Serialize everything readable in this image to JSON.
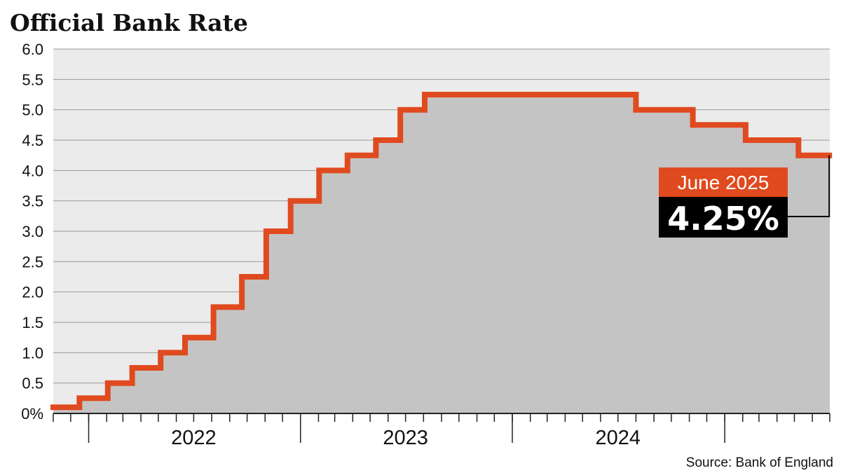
{
  "chart_data": {
    "type": "area",
    "title": "Official Bank Rate",
    "source": "Source: Bank of England",
    "ylim": [
      0,
      6.0
    ],
    "yticks": [
      "0%",
      "0.5",
      "1.0",
      "1.5",
      "2.0",
      "2.5",
      "3.0",
      "3.5",
      "4.0",
      "4.5",
      "5.0",
      "5.5",
      "6.0"
    ],
    "ytick_values": [
      0,
      0.5,
      1.0,
      1.5,
      2.0,
      2.5,
      3.0,
      3.5,
      4.0,
      4.5,
      5.0,
      5.5,
      6.0
    ],
    "x_range": [
      "2021-11-01",
      "2025-07-01"
    ],
    "year_labels": [
      {
        "label": "2022",
        "date": "2022-07-01"
      },
      {
        "label": "2023",
        "date": "2023-07-01"
      },
      {
        "label": "2024",
        "date": "2024-07-01"
      }
    ],
    "year_boundaries": [
      "2022-01-01",
      "2023-01-01",
      "2024-01-01",
      "2025-01-01"
    ],
    "grid": true,
    "series": [
      {
        "steps": [
          {
            "date": "2021-11-01",
            "rate": 0.1
          },
          {
            "date": "2021-12-16",
            "rate": 0.25
          },
          {
            "date": "2022-02-03",
            "rate": 0.5
          },
          {
            "date": "2022-03-17",
            "rate": 0.75
          },
          {
            "date": "2022-05-05",
            "rate": 1.0
          },
          {
            "date": "2022-06-16",
            "rate": 1.25
          },
          {
            "date": "2022-08-04",
            "rate": 1.75
          },
          {
            "date": "2022-09-22",
            "rate": 2.25
          },
          {
            "date": "2022-11-03",
            "rate": 3.0
          },
          {
            "date": "2022-12-15",
            "rate": 3.5
          },
          {
            "date": "2023-02-02",
            "rate": 4.0
          },
          {
            "date": "2023-03-23",
            "rate": 4.25
          },
          {
            "date": "2023-05-11",
            "rate": 4.5
          },
          {
            "date": "2023-06-22",
            "rate": 5.0
          },
          {
            "date": "2023-08-03",
            "rate": 5.25
          },
          {
            "date": "2024-08-01",
            "rate": 5.0
          },
          {
            "date": "2024-11-07",
            "rate": 4.75
          },
          {
            "date": "2025-02-06",
            "rate": 4.5
          },
          {
            "date": "2025-05-08",
            "rate": 4.25
          }
        ],
        "end_date": "2025-06-30"
      }
    ],
    "colors": {
      "line": "#e04a1f",
      "area": "#c4c4c4",
      "plot_bg": "#ebebeb",
      "grid": "#9a9a9a",
      "callout_label_bg": "#e04a1f",
      "callout_value_bg": "#000000"
    },
    "callout": {
      "label": "June 2025",
      "value": "4.25%",
      "date": "2025-06-30",
      "rate": 4.25
    }
  }
}
